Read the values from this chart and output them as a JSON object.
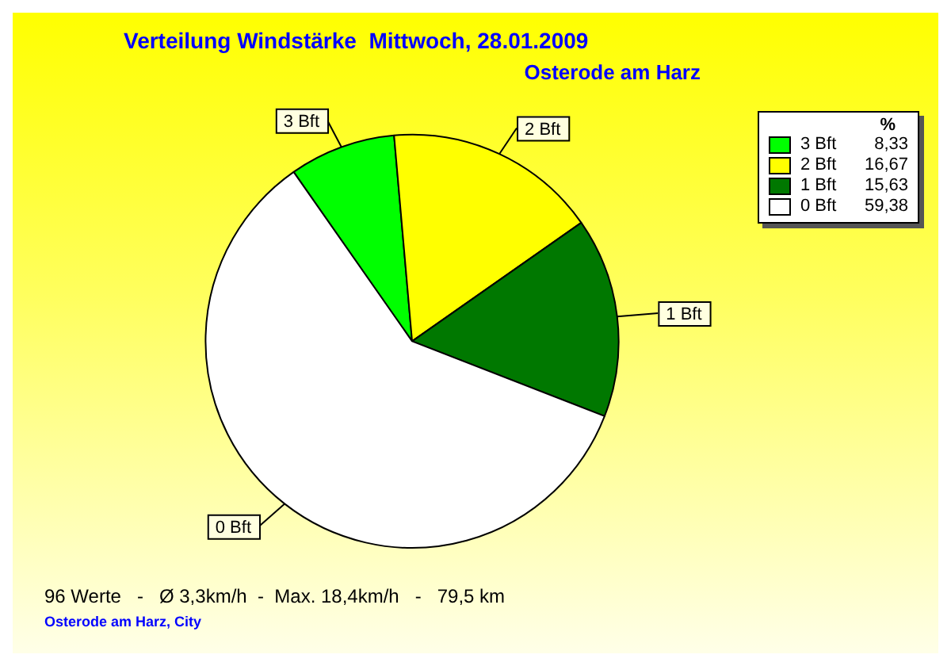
{
  "chart_data": {
    "type": "pie",
    "title": "Verteilung Windstärke  Mittwoch, 28.01.2009",
    "subtitle": "Osterode am Harz",
    "categories": [
      "3 Bft",
      "2 Bft",
      "1 Bft",
      "0 Bft"
    ],
    "values": [
      8.33,
      16.67,
      15.63,
      59.38
    ],
    "value_labels": [
      "8,33",
      "16,67",
      "15,63",
      "59,38"
    ],
    "colors": [
      "#00ff00",
      "#ffff00",
      "#007800",
      "#ffffff"
    ],
    "legend": "top right",
    "legend_title": "%",
    "annotations": [
      "96 Werte   -   Ø 3,3km/h  -  Max. 18,4km/h   -   79,5 km",
      "Osterode am Harz, City"
    ]
  }
}
